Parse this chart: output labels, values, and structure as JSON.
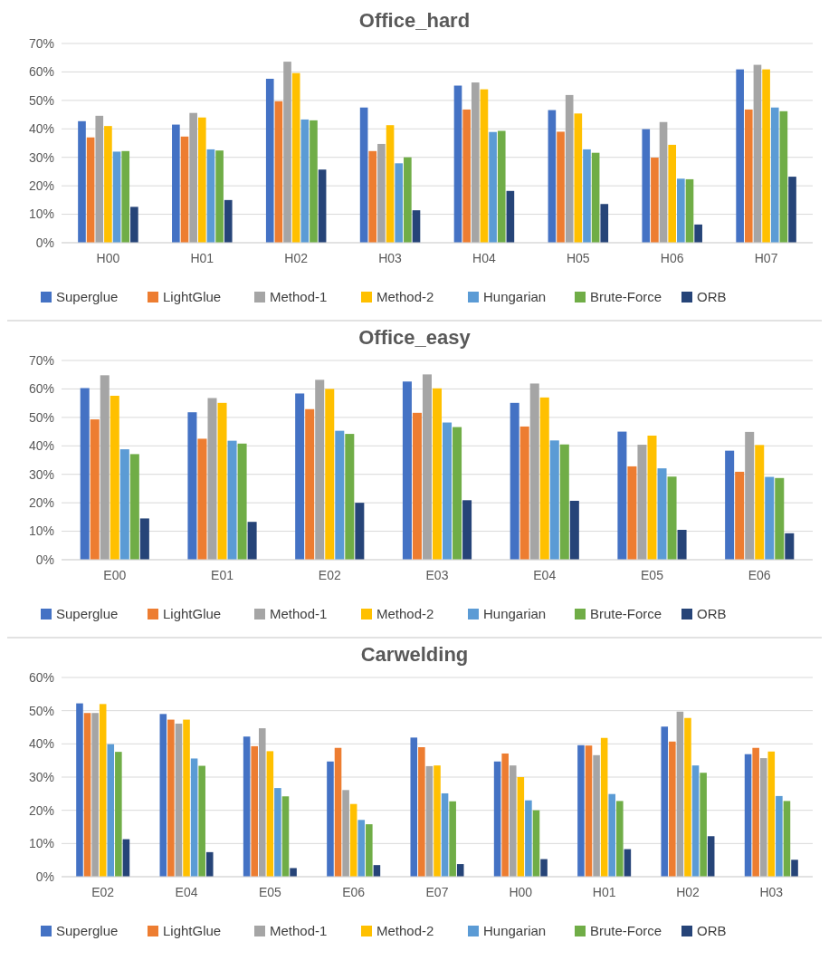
{
  "chart_data": [
    {
      "type": "bar",
      "title": "Office_hard",
      "categories": [
        "H00",
        "H01",
        "H02",
        "H03",
        "H04",
        "H05",
        "H06",
        "H07"
      ],
      "ylim": [
        0,
        70
      ],
      "yticks": [
        {
          "value": 0,
          "label": "0%"
        },
        {
          "value": 10,
          "label": "10%"
        },
        {
          "value": 20,
          "label": "20%"
        },
        {
          "value": 30,
          "label": "30%"
        },
        {
          "value": 40,
          "label": "40%"
        },
        {
          "value": 50,
          "label": "50%"
        },
        {
          "value": 60,
          "label": "60%"
        },
        {
          "value": 70,
          "label": "70%"
        }
      ],
      "grid": "y",
      "legend": "bottom",
      "series": [
        {
          "name": "Superglue",
          "color": "#4472c4",
          "values": [
            42.7,
            41.5,
            57.6,
            47.5,
            55.2,
            46.6,
            39.9,
            60.9
          ]
        },
        {
          "name": "LightGlue",
          "color": "#ed7d31",
          "values": [
            37,
            37.3,
            49.7,
            32.2,
            46.8,
            39,
            29.9,
            46.8
          ]
        },
        {
          "name": "Method-1",
          "color": "#a5a5a5",
          "values": [
            44.6,
            45.6,
            63.6,
            34.7,
            56.3,
            51.9,
            42.4,
            62.5
          ]
        },
        {
          "name": "Method-2",
          "color": "#ffc000",
          "values": [
            41,
            44,
            59.6,
            41.3,
            53.9,
            45.4,
            34.4,
            60.9
          ]
        },
        {
          "name": "Hungarian",
          "color": "#5b9bd5",
          "values": [
            32,
            32.8,
            43.3,
            27.9,
            38.9,
            32.8,
            22.5,
            47.5
          ]
        },
        {
          "name": "Brute-Force",
          "color": "#70ad47",
          "values": [
            32.2,
            32.4,
            43,
            30,
            39.3,
            31.6,
            22.3,
            46.2
          ]
        },
        {
          "name": "ORB",
          "color": "#264478",
          "values": [
            12.6,
            15,
            25.7,
            11.4,
            18.2,
            13.6,
            6.4,
            23.2
          ]
        }
      ]
    },
    {
      "type": "bar",
      "title": "Office_easy",
      "categories": [
        "E00",
        "E01",
        "E02",
        "E03",
        "E04",
        "E05",
        "E06"
      ],
      "ylim": [
        0,
        70
      ],
      "yticks": [
        {
          "value": 0,
          "label": "0%"
        },
        {
          "value": 10,
          "label": "10%"
        },
        {
          "value": 20,
          "label": "20%"
        },
        {
          "value": 30,
          "label": "30%"
        },
        {
          "value": 40,
          "label": "40%"
        },
        {
          "value": 50,
          "label": "50%"
        },
        {
          "value": 60,
          "label": "60%"
        },
        {
          "value": 70,
          "label": "70%"
        }
      ],
      "grid": "y",
      "legend": "bottom",
      "series": [
        {
          "name": "Superglue",
          "color": "#4472c4",
          "values": [
            60.3,
            51.8,
            58.4,
            62.6,
            55.1,
            45,
            38.3
          ]
        },
        {
          "name": "LightGlue",
          "color": "#ed7d31",
          "values": [
            49.3,
            42.5,
            52.9,
            51.6,
            46.8,
            32.8,
            30.9
          ]
        },
        {
          "name": "Method-1",
          "color": "#a5a5a5",
          "values": [
            64.8,
            56.8,
            63.2,
            65.1,
            61.9,
            40.4,
            44.9
          ]
        },
        {
          "name": "Method-2",
          "color": "#ffc000",
          "values": [
            57.6,
            55.1,
            60,
            60.2,
            57,
            43.6,
            40.3
          ]
        },
        {
          "name": "Hungarian",
          "color": "#5b9bd5",
          "values": [
            38.8,
            41.8,
            45.3,
            48.2,
            41.9,
            32.1,
            29.1
          ]
        },
        {
          "name": "Brute-Force",
          "color": "#70ad47",
          "values": [
            37.1,
            40.8,
            44.2,
            46.6,
            40.5,
            29.2,
            28.7
          ]
        },
        {
          "name": "ORB",
          "color": "#264478",
          "values": [
            14.5,
            13.3,
            20,
            20.9,
            20.7,
            10.5,
            9.3
          ]
        }
      ]
    },
    {
      "type": "bar",
      "title": "Carwelding",
      "categories": [
        "E02",
        "E04",
        "E05",
        "E06",
        "E07",
        "H00",
        "H01",
        "H02",
        "H03"
      ],
      "ylim": [
        0,
        60
      ],
      "yticks": [
        {
          "value": 0,
          "label": "0%"
        },
        {
          "value": 10,
          "label": "10%"
        },
        {
          "value": 20,
          "label": "20%"
        },
        {
          "value": 30,
          "label": "30%"
        },
        {
          "value": 40,
          "label": "40%"
        },
        {
          "value": 50,
          "label": "50%"
        },
        {
          "value": 60,
          "label": "60%"
        }
      ],
      "grid": "y",
      "legend": "bottom",
      "series": [
        {
          "name": "Superglue",
          "color": "#4472c4",
          "values": [
            52.2,
            49,
            42.2,
            34.7,
            41.9,
            34.7,
            39.6,
            45.2,
            36.9
          ]
        },
        {
          "name": "LightGlue",
          "color": "#ed7d31",
          "values": [
            49.3,
            47.3,
            39.3,
            38.8,
            39,
            37.1,
            39.5,
            40.7,
            38.8
          ]
        },
        {
          "name": "Method-1",
          "color": "#a5a5a5",
          "values": [
            49.3,
            46.1,
            44.7,
            26.1,
            33.3,
            33.5,
            36.6,
            49.7,
            35.7
          ]
        },
        {
          "name": "Method-2",
          "color": "#ffc000",
          "values": [
            52,
            47.3,
            37.8,
            21.9,
            33.5,
            30,
            41.8,
            47.8,
            37.7
          ]
        },
        {
          "name": "Hungarian",
          "color": "#5b9bd5",
          "values": [
            39.9,
            35.6,
            26.7,
            17.1,
            25.1,
            23,
            24.9,
            33.5,
            24.3
          ]
        },
        {
          "name": "Brute-Force",
          "color": "#70ad47",
          "values": [
            37.6,
            33.4,
            24.2,
            15.8,
            22.7,
            20,
            22.8,
            31.3,
            22.8
          ]
        },
        {
          "name": "ORB",
          "color": "#264478",
          "values": [
            11.3,
            7.4,
            2.6,
            3.5,
            3.8,
            5.3,
            8.3,
            12.2,
            5.1
          ]
        }
      ]
    }
  ]
}
